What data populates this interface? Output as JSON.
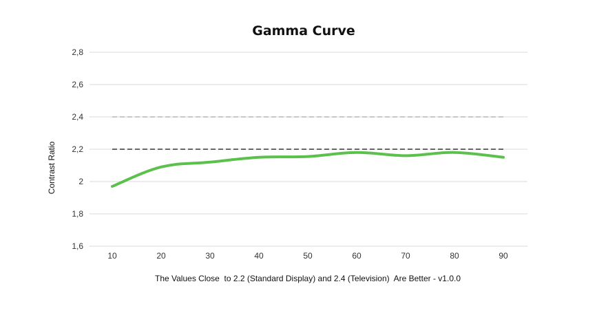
{
  "chart_data": {
    "type": "line",
    "title": "Gamma Curve",
    "xlabel": "The Values Close  to 2.2 (Standard Display) and 2.4 (Television)  Are Better - v1.0.0",
    "ylabel": "Contrast Ratio",
    "x": [
      10,
      20,
      30,
      40,
      50,
      60,
      70,
      80,
      90
    ],
    "x_tick_labels": [
      "10",
      "20",
      "30",
      "40",
      "50",
      "60",
      "70",
      "80",
      "90"
    ],
    "ylim": [
      1.6,
      2.8
    ],
    "y_ticks": [
      1.6,
      1.8,
      2.0,
      2.2,
      2.4,
      2.6,
      2.8
    ],
    "y_tick_labels": [
      "1,6",
      "1,8",
      "2",
      "2,2",
      "2,4",
      "2,6",
      "2,8"
    ],
    "grid": true,
    "series": [
      {
        "values": [
          1.97,
          2.09,
          2.12,
          2.15,
          2.155,
          2.18,
          2.16,
          2.18,
          2.15
        ],
        "color": "#5cc04c"
      }
    ],
    "reference_lines": [
      {
        "value": 2.4,
        "color": "#c8c8c8",
        "style": "dashed"
      },
      {
        "value": 2.2,
        "color": "#666666",
        "style": "dashed"
      }
    ]
  }
}
